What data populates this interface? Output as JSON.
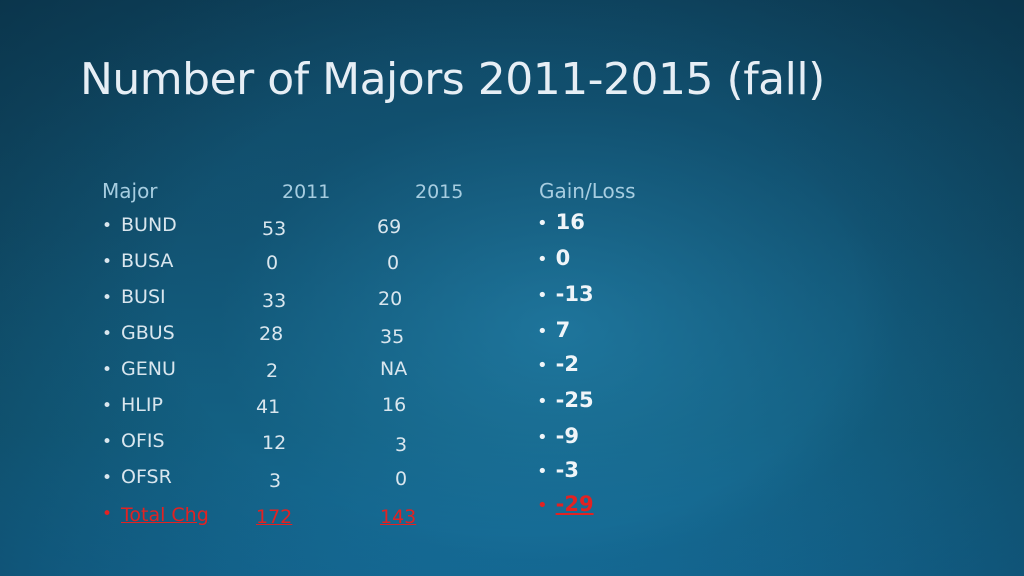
{
  "title": "Number of Majors 2011-2015 (fall)",
  "table": {
    "headers": {
      "major": "Major",
      "year1": "2011",
      "year2": "2015",
      "gain": "Gain/Loss"
    },
    "rows": [
      {
        "major": "BUND",
        "y2011": "53",
        "y2015": "69"
      },
      {
        "major": "BUSA",
        "y2011": "0",
        "y2015": "0"
      },
      {
        "major": "BUSI",
        "y2011": "33",
        "y2015": "20"
      },
      {
        "major": "GBUS",
        "y2011": "28",
        "y2015": "35"
      },
      {
        "major": "GENU",
        "y2011": "2",
        "y2015": "NA"
      },
      {
        "major": "HLIP",
        "y2011": "41",
        "y2015": "16"
      },
      {
        "major": "OFIS",
        "y2011": "12",
        "y2015": "3"
      },
      {
        "major": "OFSR",
        "y2011": "3",
        "y2015": "0"
      }
    ],
    "total": {
      "major": "Total Chg",
      "y2011": "172",
      "y2015": "143"
    },
    "gains": [
      "16",
      "0",
      "-13",
      "7",
      "-2",
      "-25",
      "-9",
      "-3"
    ],
    "total_gain": "-29"
  },
  "colors": {
    "text": "#d9e6ee",
    "header": "#a7cde0",
    "total": "#e22222",
    "background": "#11506d"
  }
}
